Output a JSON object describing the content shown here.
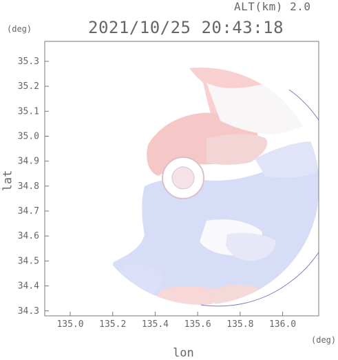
{
  "header": {
    "altitude_label": "ALT(km) 2.0",
    "timestamp": "2021/10/25 20:43:18"
  },
  "axes": {
    "lat_unit": "(deg)",
    "lon_unit": "(deg)",
    "lat_title": "lat",
    "lon_title": "lon"
  },
  "chart_data": {
    "type": "heatmap",
    "title": "2021/10/25 20:43:18",
    "subtitle": "ALT(km) 2.0",
    "xlabel": "lon",
    "ylabel": "lat",
    "x_unit": "(deg)",
    "y_unit": "(deg)",
    "xlim": [
      134.88,
      136.17
    ],
    "ylim": [
      34.28,
      35.38
    ],
    "x_ticks": [
      "135.0",
      "135.2",
      "135.4",
      "135.6",
      "135.8",
      "136.0"
    ],
    "y_ticks": [
      "34.3",
      "34.4",
      "34.5",
      "34.6",
      "34.7",
      "34.8",
      "34.9",
      "35.0",
      "35.1",
      "35.2",
      "35.3"
    ],
    "grid": false,
    "colors": {
      "positive": "#f7c9c9",
      "negative": "#d4d9f7",
      "neutral": "#ffffff"
    }
  }
}
